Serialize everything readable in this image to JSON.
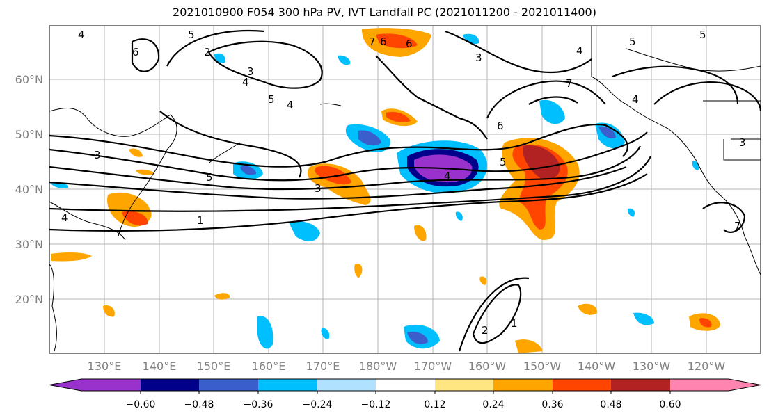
{
  "title": "2021010900 F054 300 hPa PV, IVT Landfall PC (2021011200 - 2021011400)",
  "lat_labels": [
    "60°N",
    "50°N",
    "40°N",
    "30°N",
    "20°N"
  ],
  "lon_labels": [
    "130°E",
    "140°E",
    "150°E",
    "160°E",
    "170°E",
    "180°W",
    "170°W",
    "160°W",
    "150°W",
    "140°W",
    "130°W",
    "120°W"
  ],
  "colorbar": {
    "ticks": [
      "−0.60",
      "−0.48",
      "−0.36",
      "−0.24",
      "−0.12",
      "0.12",
      "0.24",
      "0.36",
      "0.48",
      "0.60"
    ],
    "colors": [
      "#9932cc",
      "#00008b",
      "#3a5fcd",
      "#00bfff",
      "#b0e2ff",
      "#ffffff",
      "#ffe680",
      "#ffa500",
      "#ff4500",
      "#b22222",
      "#ff85b0"
    ]
  },
  "contour_labels": [
    "4",
    "6",
    "2",
    "5",
    "3",
    "4",
    "5",
    "4",
    "6",
    "7",
    "6",
    "5",
    "4",
    "7",
    "3",
    "5",
    "4",
    "3",
    "5",
    "3",
    "1",
    "4",
    "6",
    "2",
    "1",
    "7",
    "3",
    "4",
    "5"
  ]
}
